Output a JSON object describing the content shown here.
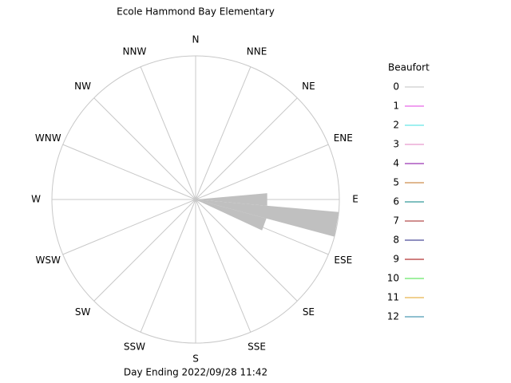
{
  "chart_data": {
    "type": "windrose",
    "title": "Ecole Hammond Bay Elementary",
    "footer": "Day Ending 2022/09/28 11:42",
    "direction_labels": [
      "N",
      "NNE",
      "NE",
      "ENE",
      "E",
      "ESE",
      "SE",
      "SSE",
      "S",
      "SSW",
      "SW",
      "WSW",
      "W",
      "WNW",
      "NW",
      "NNW"
    ],
    "x": [
      90,
      100,
      110
    ],
    "bin_width": 10,
    "rlim": [
      0,
      100
    ],
    "legend_title": "Beaufort",
    "series": [
      {
        "name": "0",
        "color": "#c0c0c0",
        "values": [
          50,
          100,
          51
        ]
      },
      {
        "name": "1",
        "color": "#e040e0",
        "values": [
          0,
          0,
          0
        ]
      },
      {
        "name": "2",
        "color": "#40e0e0",
        "values": [
          0,
          0,
          0
        ]
      },
      {
        "name": "3",
        "color": "#e080c0",
        "values": [
          0,
          0,
          0
        ]
      },
      {
        "name": "4",
        "color": "#8000a0",
        "values": [
          0,
          0,
          0
        ]
      },
      {
        "name": "5",
        "color": "#c07020",
        "values": [
          0,
          0,
          0
        ]
      },
      {
        "name": "6",
        "color": "#008080",
        "values": [
          0,
          0,
          0
        ]
      },
      {
        "name": "7",
        "color": "#a02020",
        "values": [
          0,
          0,
          0
        ]
      },
      {
        "name": "8",
        "color": "#202080",
        "values": [
          0,
          0,
          0
        ]
      },
      {
        "name": "9",
        "color": "#a00000",
        "values": [
          0,
          0,
          0
        ]
      },
      {
        "name": "10",
        "color": "#40e040",
        "values": [
          0,
          0,
          0
        ]
      },
      {
        "name": "11",
        "color": "#e0a020",
        "values": [
          0,
          0,
          0
        ]
      },
      {
        "name": "12",
        "color": "#2080a0",
        "values": [
          0,
          0,
          0
        ]
      }
    ]
  }
}
